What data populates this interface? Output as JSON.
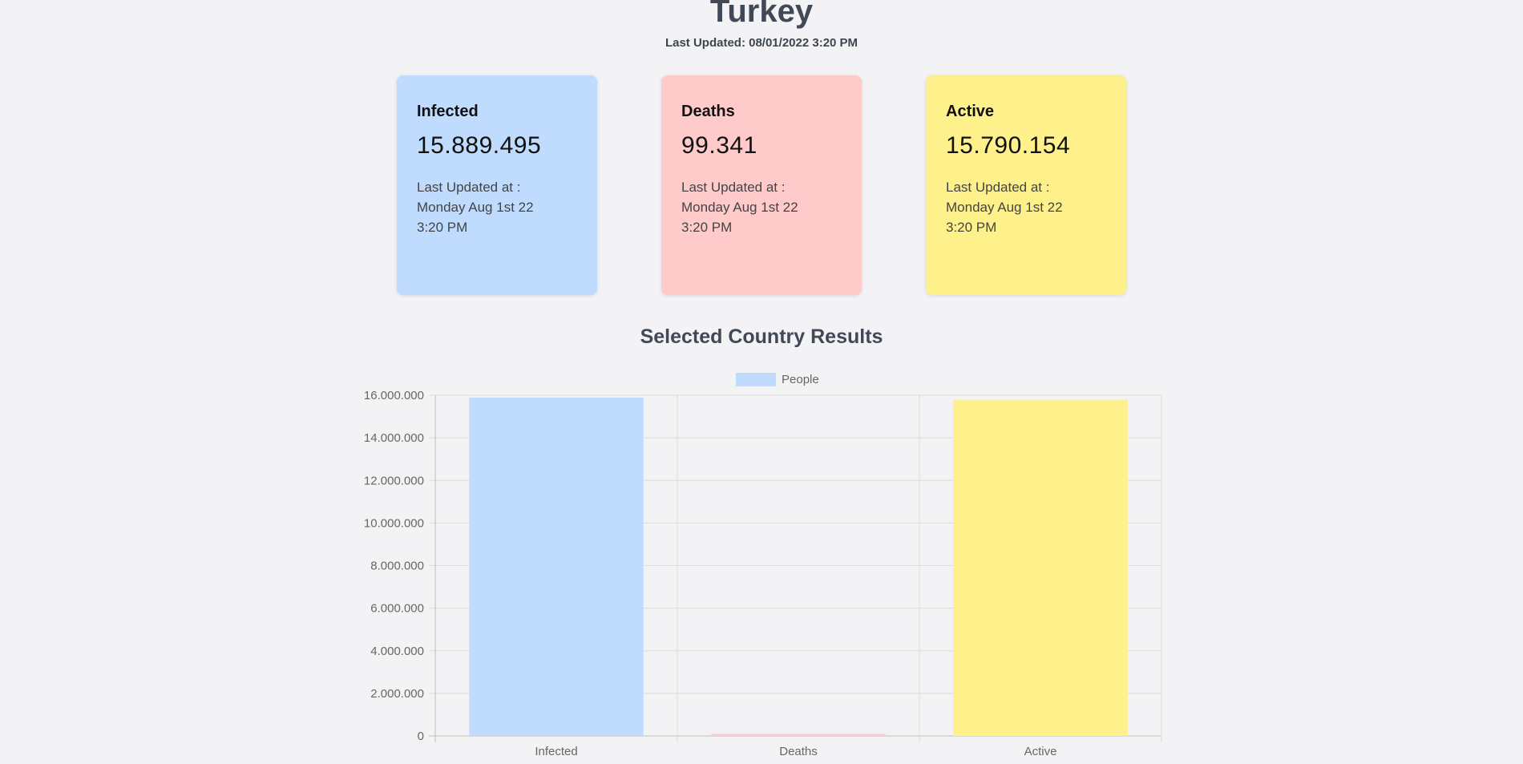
{
  "header": {
    "country": "Turkey",
    "last_updated": "Last Updated: 08/01/2022 3:20 PM"
  },
  "cards": [
    {
      "label": "Infected",
      "value": "15.889.495",
      "updated_line1": "Last Updated at :",
      "updated_line2": "Monday Aug 1st 22",
      "updated_line3": "3:20 PM",
      "color": "#bfdbfe"
    },
    {
      "label": "Deaths",
      "value": "99.341",
      "updated_line1": "Last Updated at :",
      "updated_line2": "Monday Aug 1st 22",
      "updated_line3": "3:20 PM",
      "color": "#fecaca"
    },
    {
      "label": "Active",
      "value": "15.790.154",
      "updated_line1": "Last Updated at :",
      "updated_line2": "Monday Aug 1st 22",
      "updated_line3": "3:20 PM",
      "color": "#fef08a"
    }
  ],
  "section_title": "Selected Country Results",
  "chart_data": {
    "type": "bar",
    "categories": [
      "Infected",
      "Deaths",
      "Active"
    ],
    "series": [
      {
        "name": "People",
        "values": [
          15889495,
          99341,
          15790154
        ]
      }
    ],
    "bar_colors": [
      "#bfdbfe",
      "#fecaca",
      "#fef08a"
    ],
    "legend_color": "#bfdbfe",
    "ylim": [
      0,
      16000000
    ],
    "yticks": [
      0,
      2000000,
      4000000,
      6000000,
      8000000,
      10000000,
      12000000,
      14000000,
      16000000
    ],
    "ytick_labels": [
      "0",
      "2.000.000",
      "4.000.000",
      "6.000.000",
      "8.000.000",
      "10.000.000",
      "12.000.000",
      "14.000.000",
      "16.000.000"
    ],
    "grid": true,
    "legend": "top-center"
  }
}
